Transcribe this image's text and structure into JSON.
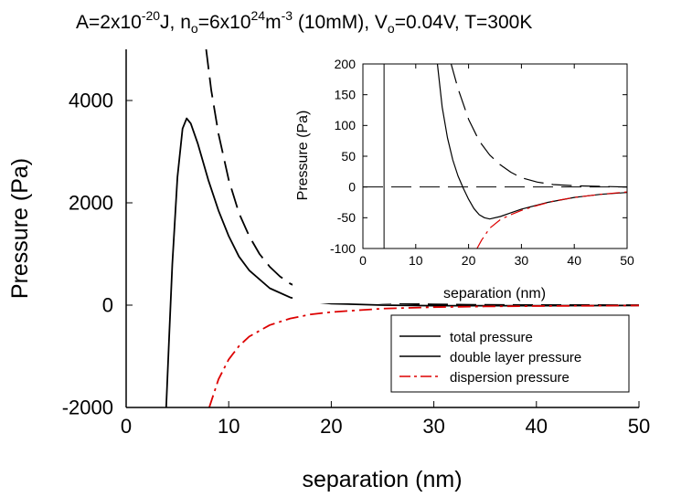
{
  "title": {
    "a": "A=2x10",
    "a_exp": "-20",
    "a_unit": "J, n",
    "n_sub": "o",
    "n_val": "=6x10",
    "n_exp": "24",
    "n_unit": "m",
    "m_exp": "-3",
    "conc": " (10mM), V",
    "v_sub": "o",
    "v_val": "=0.04V, T=300K"
  },
  "chart_data": [
    {
      "id": "main",
      "type": "line",
      "xlabel": "separation (nm)",
      "ylabel": "Pressure (Pa)",
      "xlim": [
        0,
        50
      ],
      "ylim": [
        -2000,
        5000
      ],
      "xticks": [
        0,
        10,
        20,
        30,
        40,
        50
      ],
      "yticks": [
        -2000,
        0,
        2000,
        4000
      ],
      "grid": false,
      "legend_position": "bottom-right",
      "series": [
        {
          "name": "total pressure",
          "color": "#000000",
          "dash": "solid",
          "x": [
            3.9,
            4.2,
            4.5,
            5.0,
            5.5,
            5.9,
            6.3,
            7.0,
            8.0,
            9.0,
            10.0,
            11.0,
            12.0,
            14.0,
            16.0,
            18.0,
            20.0,
            25.0,
            30.0,
            40.0,
            50.0
          ],
          "y": [
            -2000,
            -600,
            800,
            2500,
            3450,
            3650,
            3550,
            3150,
            2450,
            1850,
            1350,
            950,
            680,
            330,
            150,
            70,
            30,
            0,
            -10,
            -10,
            -5
          ]
        },
        {
          "name": "double layer pressure",
          "color": "#000000",
          "dash": "long-dash",
          "x": [
            7.8,
            8.3,
            9.0,
            10.0,
            11.0,
            12.0,
            13.0,
            14.0,
            15.0,
            16.0,
            18.0,
            20.0,
            22.0,
            25.0,
            30.0,
            35.0,
            40.0,
            50.0
          ],
          "y": [
            5000,
            4200,
            3350,
            2450,
            1800,
            1350,
            1000,
            750,
            560,
            420,
            240,
            140,
            85,
            45,
            15,
            5,
            2,
            0
          ]
        },
        {
          "name": "dispersion pressure",
          "color": "#dd0000",
          "dash": "dash-dot",
          "x": [
            8.1,
            9.0,
            10.0,
            11.0,
            12.0,
            14.0,
            16.0,
            18.0,
            20.0,
            25.0,
            30.0,
            35.0,
            40.0,
            45.0,
            50.0
          ],
          "y": [
            -2000,
            -1450,
            -1060,
            -800,
            -615,
            -390,
            -260,
            -180,
            -135,
            -68,
            -40,
            -25,
            -17,
            -12,
            -8
          ]
        }
      ]
    },
    {
      "id": "inset",
      "type": "line",
      "xlabel": "separation (nm)",
      "ylabel": "Pressure (Pa)",
      "xlim": [
        0,
        50
      ],
      "ylim": [
        -100,
        200
      ],
      "xticks": [
        0,
        10,
        20,
        30,
        40,
        50
      ],
      "yticks": [
        -100,
        -50,
        0,
        50,
        100,
        150,
        200
      ],
      "grid": false,
      "reference_lines": [
        {
          "axis": "y",
          "value": 0,
          "dash": "long-dash"
        },
        {
          "axis": "x",
          "value": 4,
          "dash": "solid"
        }
      ],
      "series": [
        {
          "name": "total pressure",
          "color": "#000000",
          "dash": "solid",
          "x": [
            14.1,
            15.0,
            16.0,
            17.0,
            18.0,
            19.0,
            20.0,
            21.0,
            22.0,
            23.0,
            24.0,
            26.0,
            28.0,
            30.0,
            35.0,
            40.0,
            45.0,
            50.0
          ],
          "y": [
            200,
            130,
            80,
            44,
            18,
            -2,
            -20,
            -35,
            -45,
            -50,
            -52,
            -48,
            -42,
            -36,
            -25,
            -17,
            -12,
            -9
          ]
        },
        {
          "name": "double layer pressure",
          "color": "#000000",
          "dash": "long-dash",
          "x": [
            16.7,
            18.0,
            20.0,
            22.0,
            24.0,
            26.0,
            28.0,
            30.0,
            33.0,
            36.0,
            40.0,
            45.0,
            50.0
          ],
          "y": [
            200,
            160,
            110,
            75,
            52,
            36,
            24,
            15,
            8,
            4,
            2,
            1,
            0
          ]
        },
        {
          "name": "dispersion pressure",
          "color": "#dd0000",
          "dash": "dash-dot",
          "x": [
            21.6,
            22.5,
            24.0,
            26.0,
            28.0,
            30.0,
            33.0,
            36.0,
            40.0,
            45.0,
            50.0
          ],
          "y": [
            -100,
            -86,
            -67,
            -53,
            -45,
            -38,
            -30,
            -23,
            -17,
            -12,
            -8
          ]
        }
      ]
    }
  ]
}
